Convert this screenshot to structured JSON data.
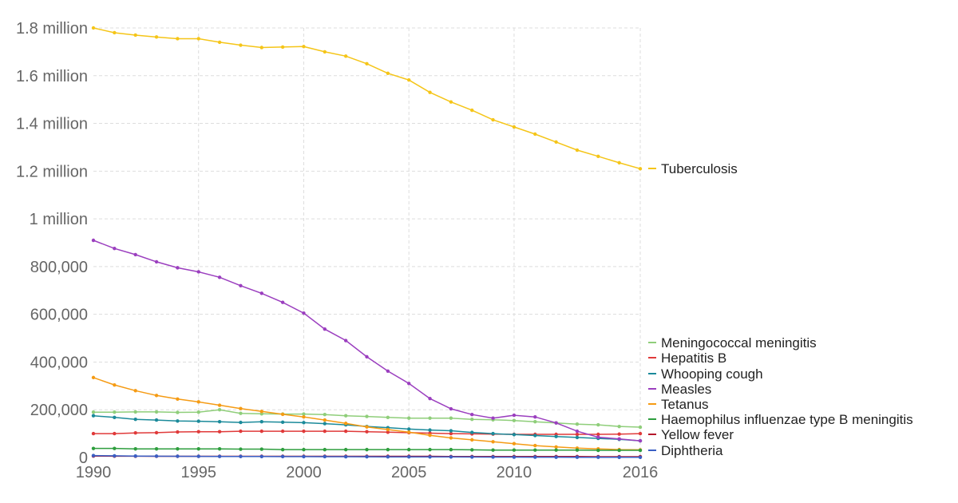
{
  "chart_data": {
    "type": "line",
    "title": "",
    "xlabel": "",
    "ylabel": "",
    "xlim": [
      1990,
      2016
    ],
    "ylim": [
      0,
      1800000
    ],
    "grid": true,
    "legend": "right",
    "x_tick_labels": [
      "1990",
      "1995",
      "2000",
      "2005",
      "2010",
      "2016"
    ],
    "x_tick_values": [
      1990,
      1995,
      2000,
      2005,
      2010,
      2016
    ],
    "y_tick_labels": [
      "0",
      "200,000",
      "400,000",
      "600,000",
      "800,000",
      "1 million",
      "1.2 million",
      "1.4 million",
      "1.6 million",
      "1.8 million"
    ],
    "y_tick_values": [
      0,
      200000,
      400000,
      600000,
      800000,
      1000000,
      1200000,
      1400000,
      1600000,
      1800000
    ],
    "x": [
      1990,
      1991,
      1992,
      1993,
      1994,
      1995,
      1996,
      1997,
      1998,
      1999,
      2000,
      2001,
      2002,
      2003,
      2004,
      2005,
      2006,
      2007,
      2008,
      2009,
      2010,
      2011,
      2012,
      2013,
      2014,
      2015,
      2016
    ],
    "series": [
      {
        "name": "Tuberculosis",
        "color": "#f5c518",
        "values": [
          1800000,
          1780000,
          1770000,
          1762000,
          1755000,
          1755000,
          1740000,
          1728000,
          1718000,
          1720000,
          1722000,
          1700000,
          1682000,
          1650000,
          1610000,
          1582000,
          1530000,
          1490000,
          1455000,
          1415000,
          1385000,
          1355000,
          1322000,
          1288000,
          1262000,
          1235000,
          1210000
        ]
      },
      {
        "name": "Meningococcal meningitis",
        "color": "#8fce7a",
        "values": [
          190000,
          190000,
          191000,
          191000,
          189000,
          190000,
          200000,
          185000,
          183000,
          182000,
          182000,
          180000,
          175000,
          172000,
          168000,
          165000,
          165000,
          165000,
          160000,
          158000,
          155000,
          150000,
          145000,
          140000,
          137000,
          130000,
          127000
        ]
      },
      {
        "name": "Hepatitis B",
        "color": "#e03a3a",
        "values": [
          100000,
          100000,
          103000,
          104000,
          107000,
          108000,
          108000,
          110000,
          110000,
          110000,
          110000,
          110000,
          110000,
          108000,
          106000,
          104000,
          102000,
          100000,
          99000,
          98000,
          97000,
          97000,
          97000,
          97000,
          97000,
          98000,
          100000
        ]
      },
      {
        "name": "Whooping cough",
        "color": "#1b8a9a",
        "values": [
          175000,
          168000,
          160000,
          157000,
          153000,
          152000,
          150000,
          147000,
          150000,
          148000,
          146000,
          142000,
          137000,
          130000,
          125000,
          119000,
          115000,
          112000,
          105000,
          100000,
          96000,
          92000,
          88000,
          84000,
          80000,
          76000,
          70000
        ]
      },
      {
        "name": "Measles",
        "color": "#9b3fbf",
        "values": [
          910000,
          876000,
          850000,
          820000,
          795000,
          778000,
          755000,
          720000,
          688000,
          650000,
          605000,
          538000,
          490000,
          422000,
          362000,
          310000,
          247000,
          204000,
          180000,
          165000,
          177000,
          170000,
          145000,
          110000,
          85000,
          78000,
          70000
        ]
      },
      {
        "name": "Tetanus",
        "color": "#f59b14",
        "values": [
          335000,
          304000,
          280000,
          260000,
          245000,
          233000,
          219000,
          205000,
          193000,
          181000,
          170000,
          157000,
          143000,
          128000,
          117000,
          106000,
          93000,
          82000,
          74000,
          66000,
          58000,
          50000,
          44000,
          39000,
          36000,
          33000,
          32000
        ]
      },
      {
        "name": "Haemophilus influenzae type B meningitis",
        "color": "#2e9e3e",
        "values": [
          38000,
          38000,
          36000,
          36000,
          36000,
          36000,
          36000,
          35000,
          35000,
          33000,
          33000,
          33000,
          33000,
          33000,
          33000,
          33000,
          33000,
          33000,
          32000,
          31000,
          31000,
          31000,
          31000,
          31000,
          30000,
          30000,
          30000
        ]
      },
      {
        "name": "Yellow fever",
        "color": "#b5172b",
        "values": [
          6000,
          5500,
          5200,
          5000,
          5000,
          5000,
          5000,
          5000,
          5000,
          5000,
          5000,
          5000,
          5000,
          5000,
          5000,
          5000,
          5000,
          4000,
          4000,
          4000,
          4000,
          4000,
          4000,
          4000,
          3500,
          3500,
          3500
        ]
      },
      {
        "name": "Diphtheria",
        "color": "#3a5fc4",
        "values": [
          8000,
          7000,
          6000,
          5500,
          5000,
          4800,
          4500,
          4200,
          4000,
          3800,
          3600,
          3400,
          3200,
          3000,
          2800,
          2600,
          2400,
          2200,
          2000,
          1800,
          1600,
          1400,
          1200,
          1000,
          900,
          800,
          700
        ]
      }
    ]
  }
}
